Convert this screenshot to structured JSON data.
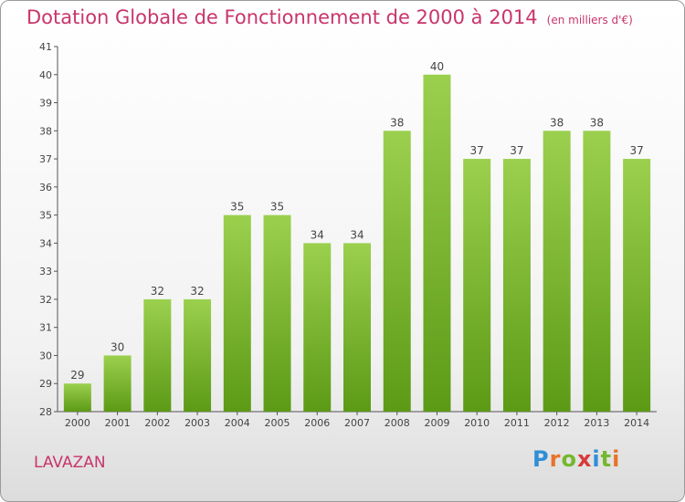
{
  "header": {
    "title": "Dotation Globale de Fonctionnement de 2000 à 2014",
    "unit": "(en milliers d'€)"
  },
  "footer": {
    "commune": "LAVAZAN",
    "logo_letters": [
      "P",
      "r",
      "o",
      "x",
      "i",
      "t",
      "i"
    ],
    "logo_colors": [
      "#2f8fd6",
      "#e8742a",
      "#74b82e",
      "#d83a3a",
      "#2f8fd6",
      "#74b82e",
      "#e8742a"
    ]
  },
  "colors": {
    "bar_top": "#9bd04e",
    "bar_bottom": "#5c9a16",
    "title": "#c8356b"
  },
  "chart_data": {
    "type": "bar",
    "title": "Dotation Globale de Fonctionnement de 2000 à 2014",
    "subtitle": "(en milliers d'€)",
    "categories": [
      "2000",
      "2001",
      "2002",
      "2003",
      "2004",
      "2005",
      "2006",
      "2007",
      "2008",
      "2009",
      "2010",
      "2011",
      "2012",
      "2013",
      "2014"
    ],
    "values": [
      29,
      30,
      32,
      32,
      35,
      35,
      34,
      34,
      38,
      40,
      37,
      37,
      38,
      38,
      37
    ],
    "ylim": [
      28,
      41
    ],
    "yticks": [
      28,
      29,
      30,
      31,
      32,
      33,
      34,
      35,
      36,
      37,
      38,
      39,
      40,
      41
    ],
    "grid": false,
    "data_labels": true
  }
}
